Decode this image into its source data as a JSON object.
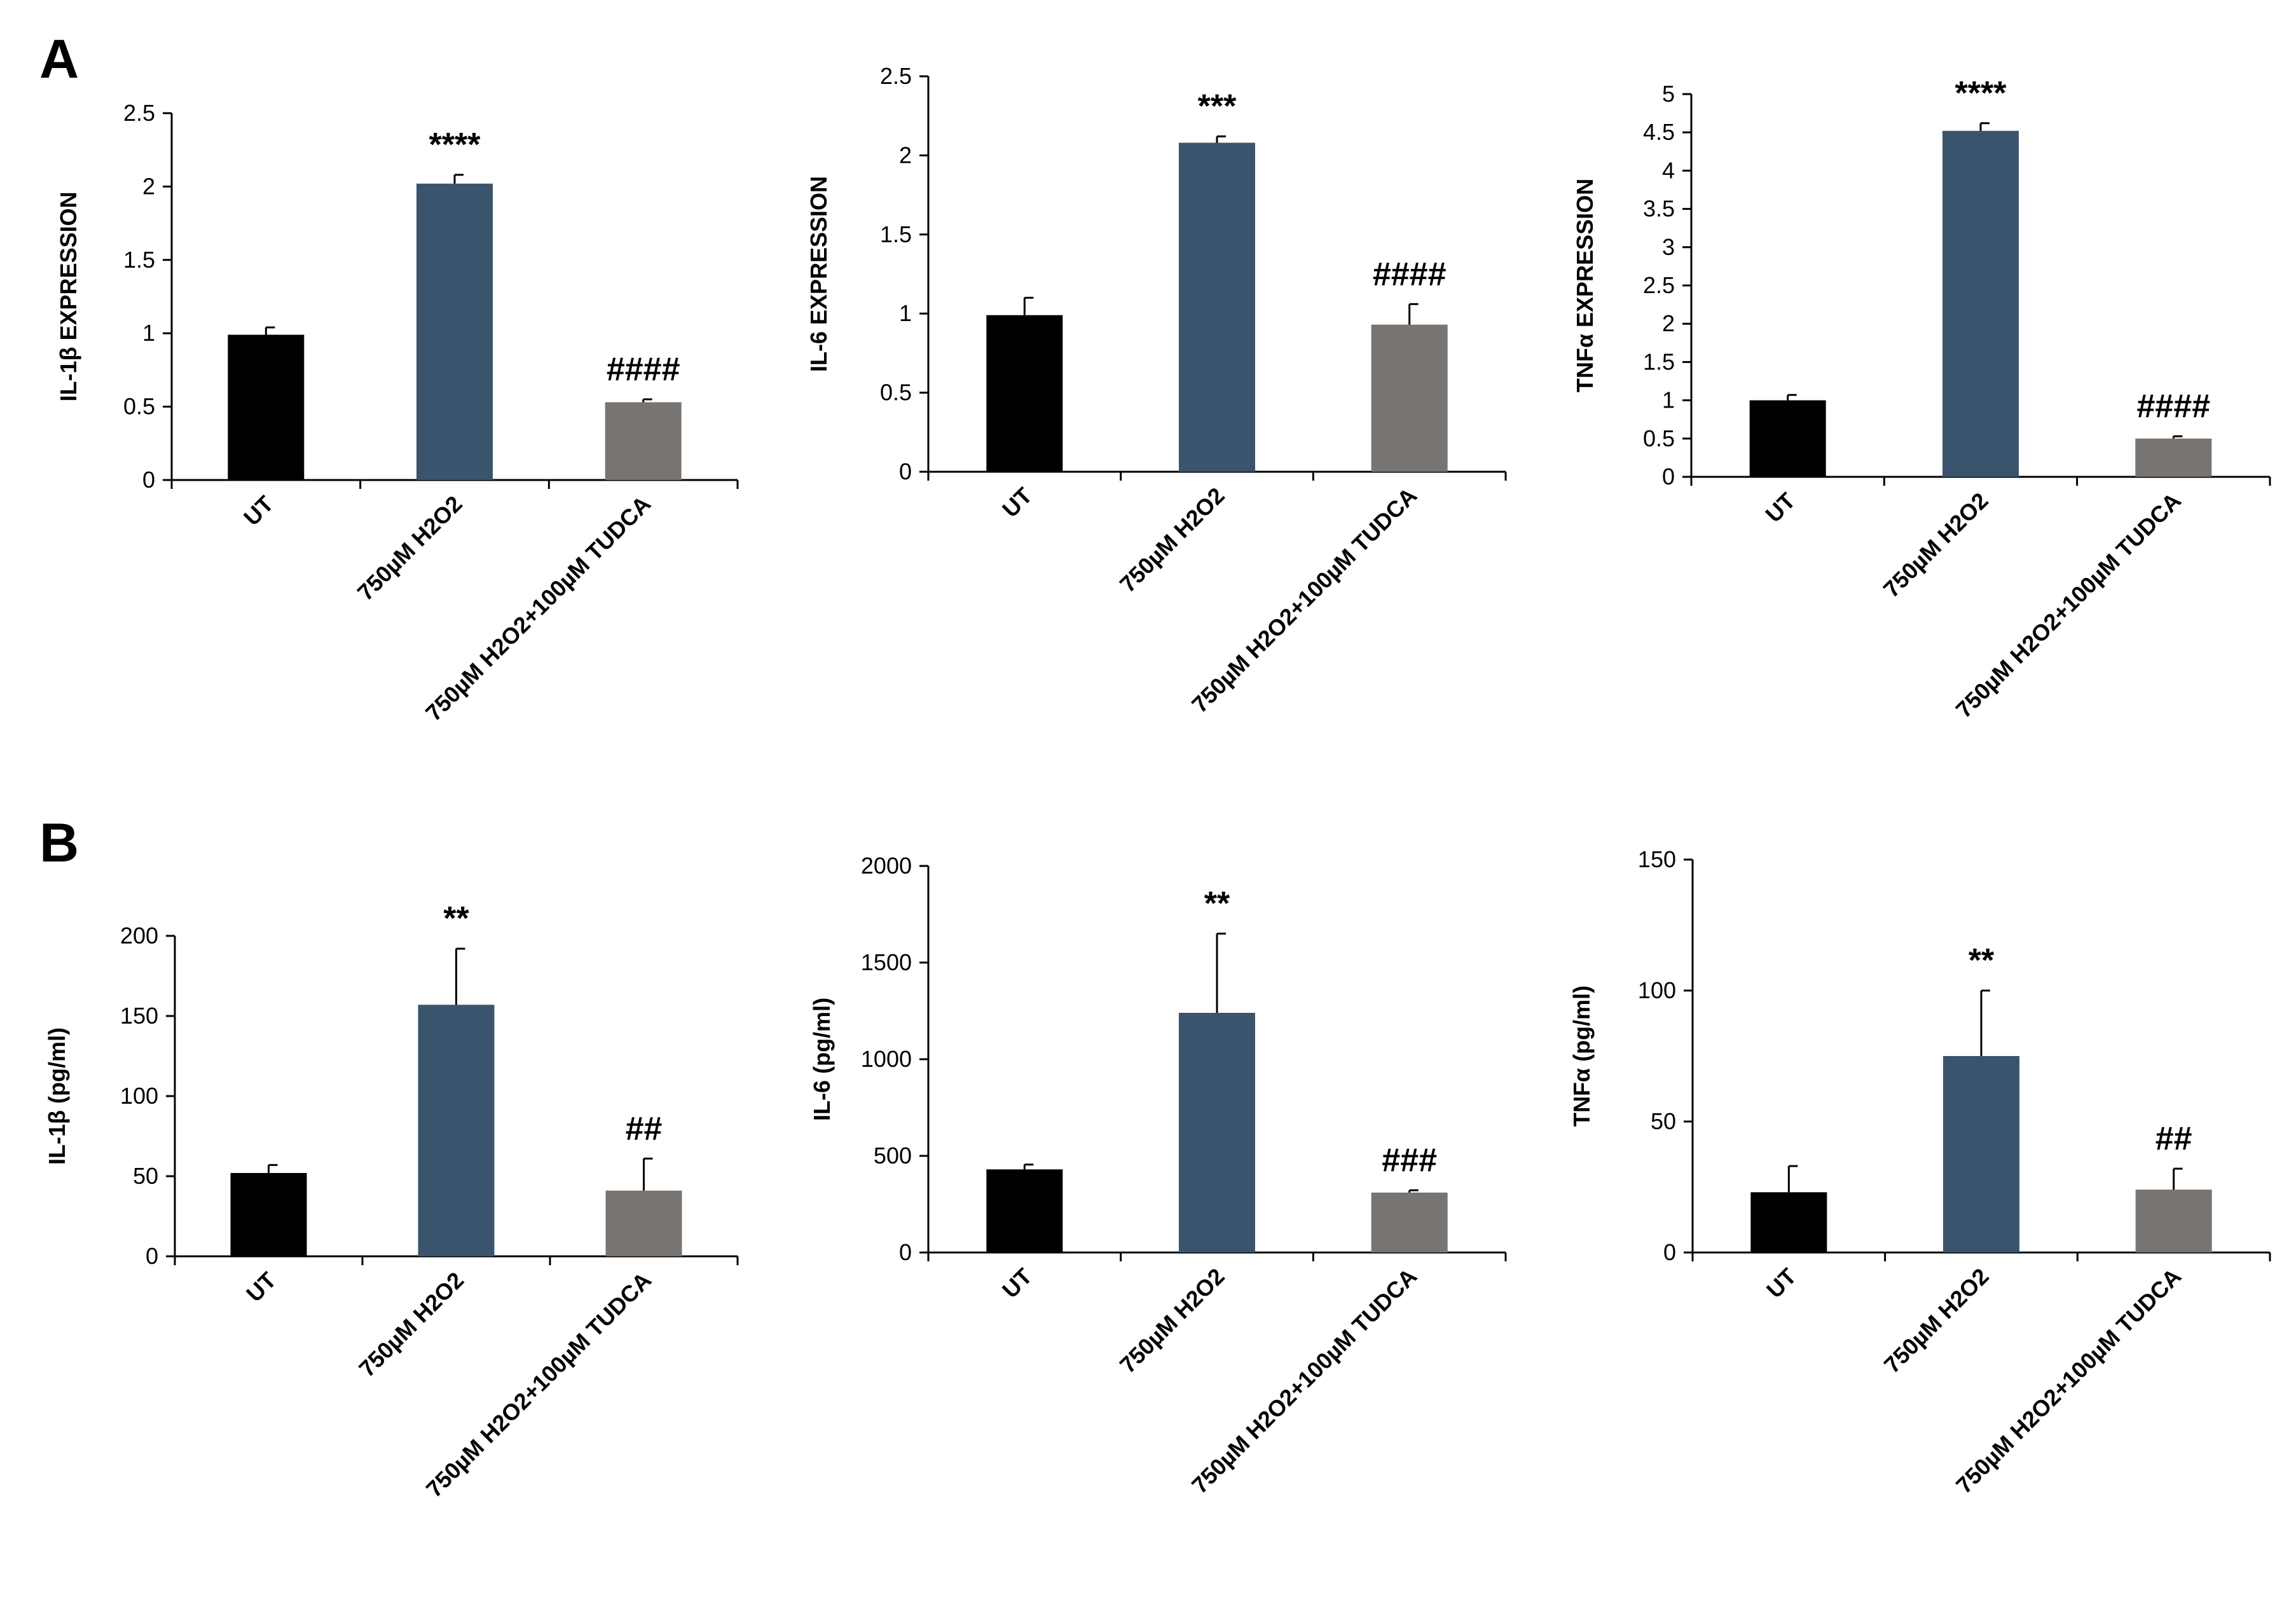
{
  "panels": [
    {
      "letter": "A"
    },
    {
      "letter": "B"
    }
  ],
  "chart_data": [
    {
      "type": "bar",
      "panel": "A",
      "title": "",
      "xlabel": "",
      "ylabel": "IL-1β EXPRESSION",
      "categories": [
        "UT",
        "750µM H2O2",
        "750µM H2O2+100µM TUDCA"
      ],
      "values": [
        0.99,
        2.02,
        0.53
      ],
      "errors": [
        0.05,
        0.06,
        0.02
      ],
      "significance": [
        "",
        "****",
        "####"
      ],
      "ylim": [
        0,
        2.5
      ],
      "yticks": [
        0,
        0.5,
        1,
        1.5,
        2,
        2.5
      ],
      "ytick_labels": [
        "0",
        "0.5",
        "1",
        "1.5",
        "2",
        "2.5"
      ],
      "colors": [
        "#000000",
        "#3b546e",
        "#777472"
      ]
    },
    {
      "type": "bar",
      "panel": "A",
      "title": "",
      "xlabel": "",
      "ylabel": "IL-6 EXPRESSION",
      "categories": [
        "UT",
        "750µM H2O2",
        "750µM H2O2+100µM TUDCA"
      ],
      "values": [
        0.99,
        2.08,
        0.93
      ],
      "errors": [
        0.11,
        0.04,
        0.13
      ],
      "significance": [
        "",
        "***",
        "####"
      ],
      "ylim": [
        0,
        2.5
      ],
      "yticks": [
        0,
        0.5,
        1,
        1.5,
        2,
        2.5
      ],
      "ytick_labels": [
        "0",
        "0.5",
        "1",
        "1.5",
        "2",
        "2.5"
      ],
      "colors": [
        "#000000",
        "#3b546e",
        "#777472"
      ]
    },
    {
      "type": "bar",
      "panel": "A",
      "title": "",
      "xlabel": "",
      "ylabel": "TNFα EXPRESSION",
      "categories": [
        "UT",
        "750µM H2O2",
        "750µM H2O2+100µM TUDCA"
      ],
      "values": [
        1.0,
        4.52,
        0.5
      ],
      "errors": [
        0.07,
        0.1,
        0.03
      ],
      "significance": [
        "",
        "****",
        "####"
      ],
      "ylim": [
        0,
        5
      ],
      "yticks": [
        0,
        0.5,
        1,
        1.5,
        2,
        2.5,
        3,
        3.5,
        4,
        4.5,
        5
      ],
      "ytick_labels": [
        "0",
        "0.5",
        "1",
        "1.5",
        "2",
        "2.5",
        "3",
        "3.5",
        "4",
        "4.5",
        "5"
      ],
      "colors": [
        "#000000",
        "#3b546e",
        "#777472"
      ]
    },
    {
      "type": "bar",
      "panel": "B",
      "title": "",
      "xlabel": "",
      "ylabel": "IL-1β (pg/ml)",
      "categories": [
        "UT",
        "750µM H2O2",
        "750µM H2O2+100µM TUDCA"
      ],
      "values": [
        52,
        157,
        41
      ],
      "errors": [
        5,
        35,
        20
      ],
      "significance": [
        "",
        "**",
        "##"
      ],
      "ylim": [
        0,
        200
      ],
      "yticks": [
        0,
        50,
        100,
        150,
        200
      ],
      "ytick_labels": [
        "0",
        "50",
        "100",
        "150",
        "200"
      ],
      "colors": [
        "#000000",
        "#3b546e",
        "#777472"
      ]
    },
    {
      "type": "bar",
      "panel": "B",
      "title": "",
      "xlabel": "",
      "ylabel": "IL-6 (pg/ml)",
      "categories": [
        "UT",
        "750µM H2O2",
        "750µM H2O2+100µM TUDCA"
      ],
      "values": [
        430,
        1240,
        310
      ],
      "errors": [
        25,
        410,
        12
      ],
      "significance": [
        "",
        "**",
        "###"
      ],
      "ylim": [
        0,
        2000
      ],
      "yticks": [
        0,
        500,
        1000,
        1500,
        2000
      ],
      "ytick_labels": [
        "0",
        "500",
        "1000",
        "1500",
        "2000"
      ],
      "colors": [
        "#000000",
        "#3b546e",
        "#777472"
      ]
    },
    {
      "type": "bar",
      "panel": "B",
      "title": "",
      "xlabel": "",
      "ylabel": "TNFα (pg/ml)",
      "categories": [
        "UT",
        "750µM H2O2",
        "750µM H2O2+100µM TUDCA"
      ],
      "values": [
        23,
        75,
        24
      ],
      "errors": [
        10,
        25,
        8
      ],
      "significance": [
        "",
        "**",
        "##"
      ],
      "ylim": [
        0,
        150
      ],
      "yticks": [
        0,
        50,
        100,
        150
      ],
      "ytick_labels": [
        "0",
        "50",
        "100",
        "150"
      ],
      "colors": [
        "#000000",
        "#3b546e",
        "#777472"
      ]
    }
  ]
}
